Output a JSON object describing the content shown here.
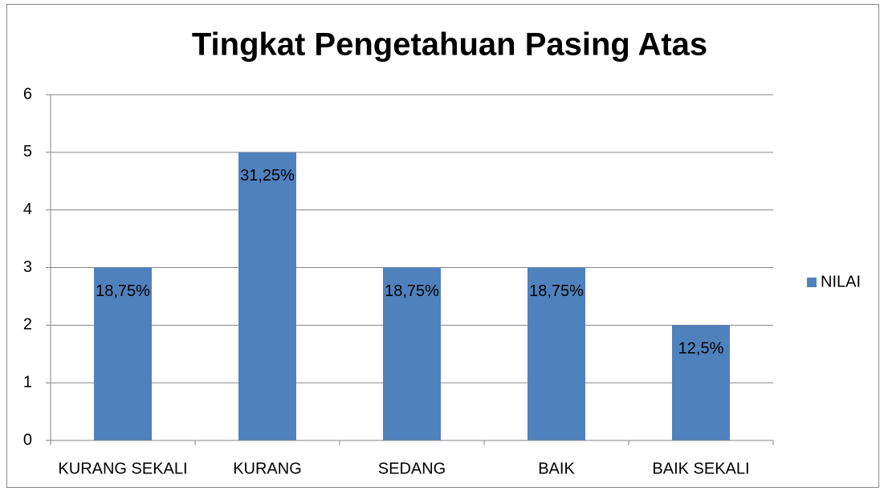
{
  "chart_data": {
    "type": "bar",
    "title": "Tingkat Pengetahuan Pasing Atas",
    "categories": [
      "KURANG SEKALI",
      "KURANG",
      "SEDANG",
      "BAIK",
      "BAIK SEKALI"
    ],
    "series": [
      {
        "name": "NILAI",
        "color": "#4f81bd",
        "values": [
          3,
          5,
          3,
          3,
          2
        ]
      }
    ],
    "annotations": [
      "18,75%",
      "31,25%",
      "18,75%",
      "18,75%",
      "12,5%"
    ],
    "ylim": [
      0,
      6
    ],
    "yticks": [
      0,
      1,
      2,
      3,
      4,
      5,
      6
    ],
    "grid": true,
    "legend": "right"
  }
}
